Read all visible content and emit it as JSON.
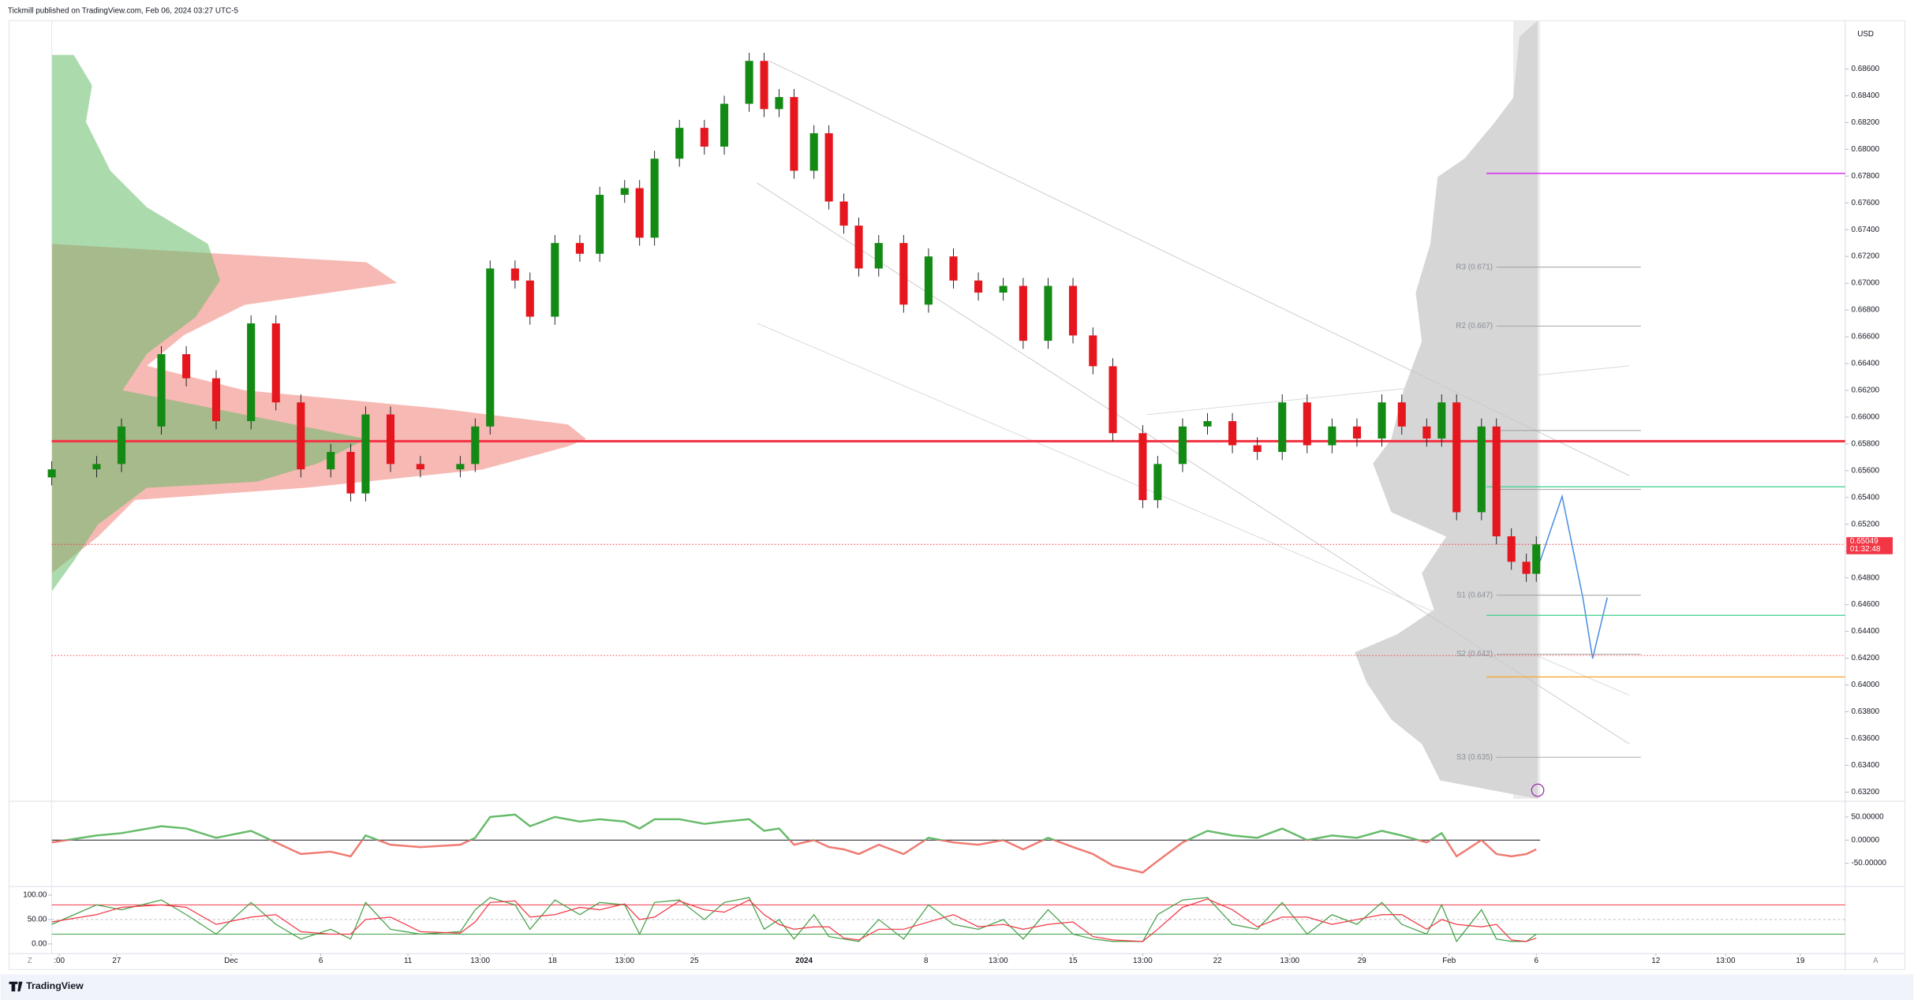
{
  "header": {
    "text": "Tickmill published on TradingView.com, Feb 06, 2024 03:27 UTC-5"
  },
  "footer": {
    "brand": "TradingView",
    "left_button": "Z",
    "right_button": "A"
  },
  "chart_data": [
    {
      "type": "candlestick",
      "currency": "USD",
      "x": [
        0,
        9,
        14,
        22,
        27,
        33,
        40,
        45,
        50,
        56,
        60,
        63,
        68,
        74,
        82,
        85,
        88,
        93,
        96,
        101,
        106,
        110,
        115,
        118,
        121,
        126,
        131,
        135,
        140,
        143,
        146,
        149,
        153,
        156,
        159,
        162,
        166,
        171,
        176,
        181,
        186,
        191,
        195,
        200,
        205,
        209,
        213,
        219,
        222,
        227,
        232,
        237,
        242,
        247,
        252,
        257,
        262,
        267,
        271,
        276,
        279,
        282,
        287,
        290,
        293,
        296,
        298
      ],
      "open": [
        0.6555,
        0.6561,
        0.6565,
        0.6593,
        0.6647,
        0.6629,
        0.6597,
        0.667,
        0.6611,
        0.6561,
        0.6574,
        0.6543,
        0.6602,
        0.6565,
        0.6561,
        0.6565,
        0.6593,
        0.6711,
        0.6702,
        0.6675,
        0.673,
        0.6722,
        0.6766,
        0.6771,
        0.6734,
        0.6793,
        0.6816,
        0.6802,
        0.6834,
        0.6866,
        0.683,
        0.6839,
        0.6784,
        0.6812,
        0.6761,
        0.6743,
        0.6711,
        0.673,
        0.6684,
        0.672,
        0.6702,
        0.6693,
        0.6698,
        0.6657,
        0.6698,
        0.6661,
        0.6638,
        0.6588,
        0.6538,
        0.6565,
        0.6593,
        0.6597,
        0.6579,
        0.6574,
        0.6611,
        0.6579,
        0.6593,
        0.6584,
        0.6611,
        0.6593,
        0.6584,
        0.6611,
        0.6529,
        0.6593,
        0.6511,
        0.6492,
        0.6483
      ],
      "high": [
        0.6567,
        0.6571,
        0.6599,
        0.6653,
        0.6653,
        0.6635,
        0.6676,
        0.6676,
        0.6617,
        0.658,
        0.658,
        0.6608,
        0.6608,
        0.6571,
        0.6571,
        0.6599,
        0.6717,
        0.6717,
        0.6708,
        0.6736,
        0.6736,
        0.6772,
        0.6777,
        0.6777,
        0.6799,
        0.6822,
        0.6822,
        0.684,
        0.6872,
        0.6872,
        0.6845,
        0.6845,
        0.6818,
        0.6818,
        0.6767,
        0.6749,
        0.6736,
        0.6736,
        0.6726,
        0.6726,
        0.6708,
        0.6704,
        0.6704,
        0.6704,
        0.6704,
        0.6667,
        0.6644,
        0.6594,
        0.6571,
        0.6599,
        0.6603,
        0.6603,
        0.6585,
        0.6617,
        0.6617,
        0.6599,
        0.6599,
        0.6617,
        0.6617,
        0.6599,
        0.6617,
        0.6617,
        0.6599,
        0.6599,
        0.6517,
        0.6498,
        0.6511
      ],
      "low": [
        0.6549,
        0.6555,
        0.6559,
        0.6587,
        0.6623,
        0.6591,
        0.6591,
        0.6605,
        0.6555,
        0.6555,
        0.6537,
        0.6537,
        0.6559,
        0.6555,
        0.6555,
        0.6559,
        0.6587,
        0.6696,
        0.6669,
        0.6669,
        0.6716,
        0.6716,
        0.676,
        0.6728,
        0.6728,
        0.6787,
        0.6796,
        0.6796,
        0.6828,
        0.6824,
        0.6824,
        0.6778,
        0.6778,
        0.6755,
        0.6737,
        0.6705,
        0.6705,
        0.6678,
        0.6678,
        0.6696,
        0.6687,
        0.6687,
        0.6651,
        0.6651,
        0.6655,
        0.6632,
        0.6582,
        0.6532,
        0.6532,
        0.6559,
        0.6587,
        0.6573,
        0.6568,
        0.6568,
        0.6573,
        0.6573,
        0.6578,
        0.6578,
        0.6587,
        0.6578,
        0.6578,
        0.6523,
        0.6523,
        0.6505,
        0.6486,
        0.6477,
        0.6477
      ],
      "close": [
        0.6561,
        0.6565,
        0.6593,
        0.6647,
        0.6629,
        0.6597,
        0.667,
        0.6611,
        0.6561,
        0.6574,
        0.6543,
        0.6602,
        0.6565,
        0.6561,
        0.6565,
        0.6593,
        0.6711,
        0.6702,
        0.6675,
        0.673,
        0.6722,
        0.6766,
        0.6771,
        0.6734,
        0.6793,
        0.6816,
        0.6802,
        0.6834,
        0.6866,
        0.683,
        0.6839,
        0.6784,
        0.6812,
        0.6761,
        0.6743,
        0.6711,
        0.673,
        0.6684,
        0.672,
        0.6702,
        0.6693,
        0.6698,
        0.6657,
        0.6698,
        0.6661,
        0.6638,
        0.6588,
        0.6538,
        0.6565,
        0.6593,
        0.6597,
        0.6579,
        0.6574,
        0.6611,
        0.6579,
        0.6593,
        0.6584,
        0.6611,
        0.6593,
        0.6584,
        0.6611,
        0.6529,
        0.6593,
        0.6511,
        0.6492,
        0.6483,
        0.6505
      ],
      "up_color": "#138a13",
      "down_color": "#e5161d",
      "xlim": [
        0,
        360
      ],
      "xticks": [
        {
          "value": 1.5,
          "label": ":00"
        },
        {
          "value": 13,
          "label": "27"
        },
        {
          "value": 36,
          "label": "Dec"
        },
        {
          "value": 54,
          "label": "6"
        },
        {
          "value": 71.5,
          "label": "11"
        },
        {
          "value": 86,
          "label": "13:00"
        },
        {
          "value": 100.5,
          "label": "18"
        },
        {
          "value": 115,
          "label": "13:00"
        },
        {
          "value": 129,
          "label": "25"
        },
        {
          "value": 151,
          "label": "2024"
        },
        {
          "value": 175.5,
          "label": "8"
        },
        {
          "value": 190,
          "label": "13:00"
        },
        {
          "value": 205,
          "label": "15"
        },
        {
          "value": 219,
          "label": "13:00"
        },
        {
          "value": 234,
          "label": "22"
        },
        {
          "value": 248.5,
          "label": "13:00"
        },
        {
          "value": 263,
          "label": "29"
        },
        {
          "value": 280.5,
          "label": "Feb"
        },
        {
          "value": 298,
          "label": "6"
        },
        {
          "value": 322,
          "label": "12"
        },
        {
          "value": 336,
          "label": "13:00"
        },
        {
          "value": 351,
          "label": "19"
        }
      ],
      "ylim": [
        0.6315,
        0.6896
      ],
      "yticks": [
        {
          "value": 0.632,
          "label": "0.63200"
        },
        {
          "value": 0.634,
          "label": "0.63400"
        },
        {
          "value": 0.636,
          "label": "0.63600"
        },
        {
          "value": 0.638,
          "label": "0.63800"
        },
        {
          "value": 0.64,
          "label": "0.64000"
        },
        {
          "value": 0.642,
          "label": "0.64200"
        },
        {
          "value": 0.644,
          "label": "0.64400"
        },
        {
          "value": 0.646,
          "label": "0.64600"
        },
        {
          "value": 0.648,
          "label": "0.64800"
        },
        {
          "value": 0.65,
          "label": "0.65000"
        },
        {
          "value": 0.652,
          "label": "0.65200"
        },
        {
          "value": 0.654,
          "label": "0.65400"
        },
        {
          "value": 0.656,
          "label": "0.65600"
        },
        {
          "value": 0.658,
          "label": "0.65800"
        },
        {
          "value": 0.66,
          "label": "0.66000"
        },
        {
          "value": 0.662,
          "label": "0.66200"
        },
        {
          "value": 0.664,
          "label": "0.66400"
        },
        {
          "value": 0.666,
          "label": "0.66600"
        },
        {
          "value": 0.668,
          "label": "0.66800"
        },
        {
          "value": 0.67,
          "label": "0.67000"
        },
        {
          "value": 0.672,
          "label": "0.67200"
        },
        {
          "value": 0.674,
          "label": "0.67400"
        },
        {
          "value": 0.676,
          "label": "0.67600"
        },
        {
          "value": 0.678,
          "label": "0.67800"
        },
        {
          "value": 0.68,
          "label": "0.68000"
        },
        {
          "value": 0.682,
          "label": "0.68200"
        },
        {
          "value": 0.684,
          "label": "0.68400"
        },
        {
          "value": 0.686,
          "label": "0.68600"
        }
      ],
      "current_price": 0.65049,
      "countdown": "01:32:48",
      "price_color": "#f23645",
      "hlines": [
        {
          "value": 0.6582,
          "color": "#f23645",
          "width": 2
        },
        {
          "value": 0.6505,
          "color": "#f23645",
          "dash": true
        },
        {
          "value": 0.6422,
          "color": "#f23645",
          "dash": true
        }
      ],
      "zones": [
        {
          "value": 0.6782,
          "color": "#d500f9"
        },
        {
          "value": 0.6548,
          "color": "#3ad08a"
        },
        {
          "value": 0.6452,
          "color": "#3ad08a"
        },
        {
          "value": 0.6406,
          "color": "#f5a623"
        }
      ],
      "pivots": [
        {
          "label": "R3 (0.671)",
          "value": 0.6712
        },
        {
          "label": "R2 (0.667)",
          "value": 0.6668
        },
        {
          "value": 0.659
        },
        {
          "value": 0.6546
        },
        {
          "label": "S1 (0.647)",
          "value": 0.6467
        },
        {
          "label": "S2 (0.642)",
          "value": 0.6423
        },
        {
          "label": "S3 (0.635)",
          "value": 0.6346
        }
      ]
    },
    {
      "type": "line",
      "ylim": [
        -95,
        76
      ],
      "yticks": [
        {
          "value": 50,
          "label": "50.00000"
        },
        {
          "value": 0,
          "label": "0.00000"
        },
        {
          "value": -50,
          "label": "-50.00000"
        }
      ],
      "series": [
        {
          "color": "#66bb6a",
          "neg_color": "#f07a72",
          "values": [
            -5,
            10,
            15,
            30,
            25,
            5,
            20,
            -5,
            -30,
            -25,
            -35,
            10,
            -10,
            -15,
            -10,
            5,
            50,
            55,
            30,
            50,
            40,
            45,
            40,
            25,
            45,
            45,
            35,
            40,
            45,
            20,
            25,
            -10,
            0,
            -15,
            -20,
            -30,
            -10,
            -30,
            5,
            -5,
            -10,
            0,
            -20,
            5,
            -15,
            -30,
            -55,
            -70,
            -45,
            -5,
            20,
            10,
            5,
            25,
            0,
            10,
            5,
            20,
            10,
            -5,
            15,
            -35,
            0,
            -30,
            -35,
            -30,
            -20
          ]
        }
      ]
    },
    {
      "type": "line",
      "ylim": [
        -15,
        110
      ],
      "yticks": [
        {
          "value": 100,
          "label": "100.00"
        },
        {
          "value": 50,
          "label": "50.00"
        },
        {
          "value": 0,
          "label": "0.00"
        }
      ],
      "series": [
        {
          "color": "#43a047",
          "values": [
            40,
            80,
            70,
            90,
            60,
            20,
            85,
            40,
            10,
            30,
            10,
            85,
            30,
            20,
            25,
            70,
            95,
            80,
            30,
            90,
            60,
            85,
            80,
            20,
            85,
            90,
            50,
            85,
            95,
            30,
            50,
            10,
            60,
            15,
            10,
            5,
            50,
            10,
            80,
            40,
            30,
            50,
            10,
            70,
            20,
            10,
            5,
            5,
            60,
            90,
            95,
            40,
            30,
            85,
            20,
            60,
            40,
            85,
            40,
            20,
            80,
            5,
            70,
            10,
            5,
            5,
            20
          ]
        },
        {
          "color": "#f23645",
          "values": [
            45,
            60,
            75,
            80,
            75,
            40,
            55,
            60,
            25,
            20,
            20,
            50,
            55,
            25,
            22,
            45,
            85,
            88,
            55,
            60,
            75,
            70,
            82,
            50,
            55,
            88,
            70,
            65,
            90,
            60,
            40,
            30,
            35,
            35,
            12,
            8,
            30,
            30,
            45,
            60,
            35,
            40,
            30,
            40,
            45,
            15,
            8,
            5,
            30,
            75,
            92,
            70,
            35,
            55,
            55,
            40,
            50,
            60,
            60,
            30,
            50,
            40,
            35,
            40,
            8,
            5,
            12
          ]
        }
      ],
      "hlines": [
        {
          "value": 80,
          "color": "#f23645"
        },
        {
          "value": 50,
          "color": "#b2b5be",
          "dash": true
        },
        {
          "value": 20,
          "color": "#43a047"
        }
      ]
    }
  ]
}
